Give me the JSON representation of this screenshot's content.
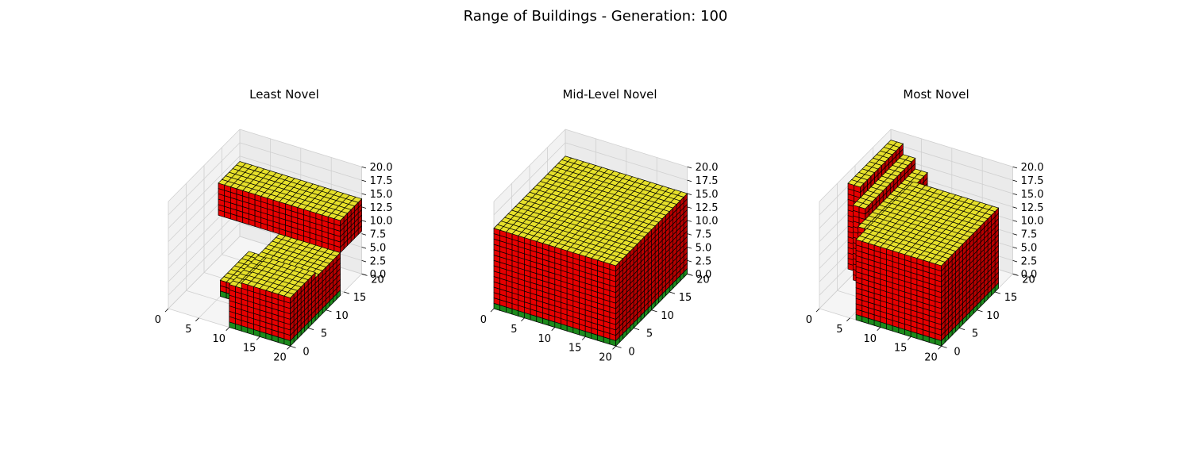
{
  "figure": {
    "title": "Range of Buildings - Generation: 100"
  },
  "colors": {
    "top": "#e6e02a",
    "side_front": "#e60000",
    "side_right": "#b80000",
    "base": "#1c8a1c",
    "edge": "#000000",
    "pane_back": "#ebebeb",
    "pane_left": "#f2f2f2",
    "pane_floor": "#f5f5f5",
    "grid": "#d0d0d0"
  },
  "chart_data": [
    {
      "type": "voxel-3d",
      "title": "Least Novel",
      "xlim": [
        0,
        20
      ],
      "ylim": [
        0,
        20
      ],
      "zlim": [
        0,
        20
      ],
      "xticks": [
        "0",
        "5",
        "10",
        "15",
        "20"
      ],
      "yticks": [
        "0",
        "5",
        "10",
        "15",
        "20"
      ],
      "zticks": [
        "0.0",
        "2.5",
        "5.0",
        "7.5",
        "10.0",
        "12.5",
        "15.0",
        "17.5",
        "20.0"
      ],
      "grid": true,
      "blocks": [
        {
          "x": [
            0,
            20
          ],
          "y": [
            14,
            20
          ],
          "z": [
            8,
            14
          ]
        },
        {
          "x": [
            10,
            20
          ],
          "y": [
            0,
            14
          ],
          "z": [
            0,
            8
          ]
        },
        {
          "x": [
            12,
            20
          ],
          "y": [
            0,
            7
          ],
          "z": [
            0,
            9
          ]
        },
        {
          "x": [
            5,
            10
          ],
          "y": [
            6,
            14
          ],
          "z": [
            0,
            3
          ]
        }
      ]
    },
    {
      "type": "voxel-3d",
      "title": "Mid-Level Novel",
      "xlim": [
        0,
        20
      ],
      "ylim": [
        0,
        20
      ],
      "zlim": [
        0,
        20
      ],
      "xticks": [
        "0",
        "5",
        "10",
        "15",
        "20"
      ],
      "yticks": [
        "0",
        "5",
        "10",
        "15",
        "20"
      ],
      "zticks": [
        "0.0",
        "2.5",
        "5.0",
        "7.5",
        "10.0",
        "12.5",
        "15.0",
        "17.5",
        "20.0"
      ],
      "grid": true,
      "blocks": [
        {
          "x": [
            0,
            20
          ],
          "y": [
            0,
            20
          ],
          "z": [
            0,
            15
          ]
        }
      ]
    },
    {
      "type": "voxel-3d",
      "title": "Most Novel",
      "xlim": [
        0,
        20
      ],
      "ylim": [
        0,
        20
      ],
      "zlim": [
        0,
        20
      ],
      "xticks": [
        "0",
        "5",
        "10",
        "15",
        "20"
      ],
      "yticks": [
        "0",
        "5",
        "10",
        "15",
        "20"
      ],
      "zticks": [
        "0.0",
        "2.5",
        "5.0",
        "7.5",
        "10.0",
        "12.5",
        "15.0",
        "17.5",
        "20.0"
      ],
      "grid": true,
      "blocks": [
        {
          "x": [
            0,
            2
          ],
          "y": [
            8,
            20
          ],
          "z": [
            2,
            18
          ]
        },
        {
          "x": [
            2,
            4
          ],
          "y": [
            6,
            20
          ],
          "z": [
            2,
            16
          ]
        },
        {
          "x": [
            4,
            6
          ],
          "y": [
            4,
            20
          ],
          "z": [
            1,
            14
          ]
        },
        {
          "x": [
            6,
            20
          ],
          "y": [
            0,
            16
          ],
          "z": [
            0,
            15
          ]
        }
      ]
    }
  ]
}
